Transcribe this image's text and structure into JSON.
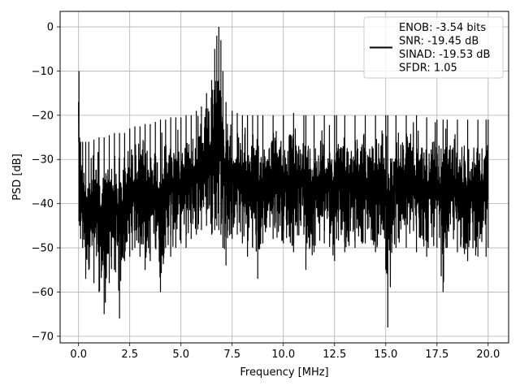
{
  "chart_data": {
    "type": "line",
    "title": "",
    "xlabel": "Frequency [MHz]",
    "ylabel": "PSD [dB]",
    "xlim": [
      -0.9,
      21.0
    ],
    "ylim": [
      -71.5,
      3.5
    ],
    "xticks": [
      0.0,
      2.5,
      5.0,
      7.5,
      10.0,
      12.5,
      15.0,
      17.5,
      20.0
    ],
    "xtick_labels": [
      "0.0",
      "2.5",
      "5.0",
      "7.5",
      "10.0",
      "12.5",
      "15.0",
      "17.5",
      "20.0"
    ],
    "yticks": [
      0,
      -10,
      -20,
      -30,
      -40,
      -50,
      -60,
      -70
    ],
    "ytick_labels": [
      "0",
      "−10",
      "−20",
      "−30",
      "−40",
      "−50",
      "−60",
      "−70"
    ],
    "grid": true,
    "legend_position": "top-right",
    "legend_lines": [
      "ENOB: -3.54 bits",
      "SNR: -19.45 dB",
      "SINAD: -19.53 dB",
      "SFDR: 1.05"
    ],
    "series": [
      {
        "color": "#000000",
        "x": [
          0.0,
          0.02,
          0.05,
          0.1,
          0.2,
          0.35,
          0.5,
          0.75,
          1.0,
          1.25,
          1.5,
          1.75,
          2.0,
          2.25,
          2.5,
          2.75,
          3.0,
          3.25,
          3.5,
          3.75,
          4.0,
          4.25,
          4.5,
          4.75,
          5.0,
          5.25,
          5.5,
          5.75,
          6.0,
          6.25,
          6.5,
          6.65,
          6.75,
          6.85,
          6.95,
          7.05,
          7.2,
          7.5,
          7.75,
          8.0,
          8.25,
          8.5,
          8.75,
          9.0,
          9.5,
          10.0,
          10.5,
          11.0,
          11.1,
          11.5,
          12.0,
          12.5,
          12.6,
          13.0,
          13.5,
          14.0,
          14.5,
          15.0,
          15.1,
          15.5,
          16.0,
          16.5,
          17.0,
          17.5,
          17.8,
          18.0,
          18.5,
          19.0,
          19.5,
          19.9,
          20.0
        ],
        "upper": [
          -17,
          -10,
          -25,
          -26,
          -26,
          -26,
          -26,
          -25.5,
          -25,
          -25,
          -24.5,
          -24,
          -24,
          -24,
          -23,
          -22.5,
          -22.5,
          -22,
          -22,
          -21.5,
          -21,
          -21,
          -20.5,
          -20.5,
          -20.5,
          -20,
          -20,
          -19,
          -18,
          -15,
          -12,
          -5,
          -2,
          0,
          -3,
          -10,
          -17,
          -19,
          -19.5,
          -20,
          -20,
          -20,
          -20,
          -20,
          -20,
          -20,
          -19.5,
          -20,
          -20,
          -20,
          -20,
          -20,
          -20,
          -20,
          -20,
          -20,
          -20,
          -20,
          -20,
          -20,
          -20,
          -20,
          -20.5,
          -21,
          -21,
          -21,
          -21,
          -21,
          -21,
          -21,
          -21
        ],
        "lower": [
          -20,
          -44,
          -45,
          -48,
          -50,
          -57,
          -55,
          -58,
          -60,
          -65,
          -58,
          -55,
          -66,
          -53,
          -52,
          -50,
          -52,
          -55,
          -53,
          -50,
          -60,
          -50,
          -52,
          -50,
          -49,
          -50,
          -48,
          -47,
          -46,
          -45,
          -47,
          -46,
          -45,
          -46,
          -47,
          -50,
          -54,
          -48,
          -47,
          -49,
          -52,
          -50,
          -57,
          -49,
          -48,
          -49,
          -51,
          -47,
          -55,
          -51,
          -49,
          -53,
          -48,
          -51,
          -50,
          -49,
          -51,
          -55,
          -68,
          -50,
          -50,
          -51,
          -52,
          -50,
          -60,
          -50,
          -51,
          -53,
          -52,
          -52,
          -50
        ]
      }
    ]
  }
}
